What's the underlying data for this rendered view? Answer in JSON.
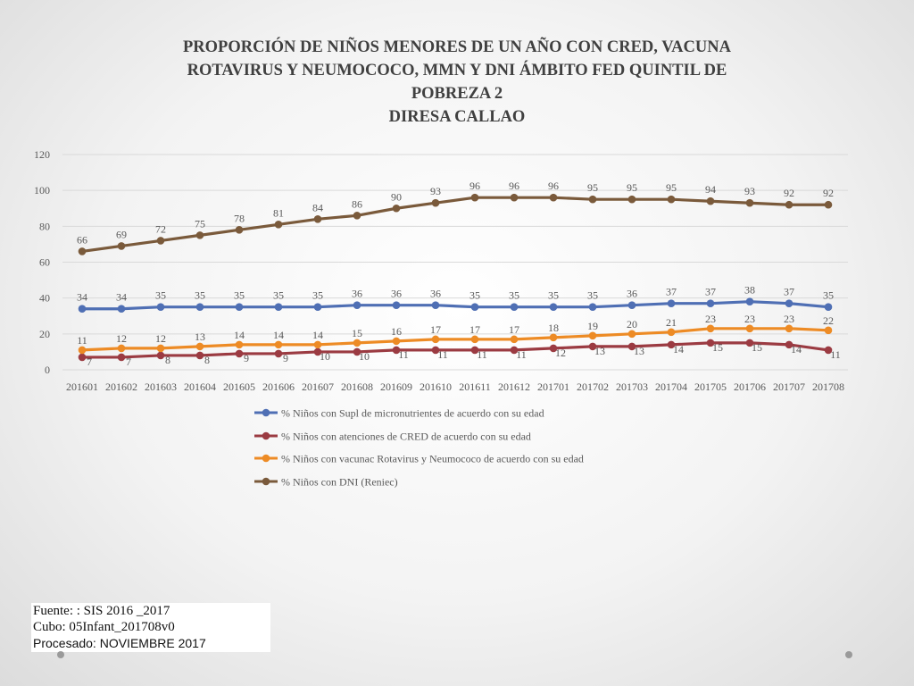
{
  "title": {
    "lines": [
      "PROPORCIÓN DE NIÑOS MENORES DE UN AÑO CON CRED, VACUNA",
      "ROTAVIRUS Y NEUMOCOCO, MMN Y DNI  ÁMBITO FED QUINTIL  DE",
      "POBREZA 2",
      "DIRESA CALLAO"
    ]
  },
  "chart_data": {
    "type": "line",
    "x": [
      "201601",
      "201602",
      "201603",
      "201604",
      "201605",
      "201606",
      "201607",
      "201608",
      "201609",
      "201610",
      "201611",
      "201612",
      "201701",
      "201702",
      "201703",
      "201704",
      "201705",
      "201706",
      "201707",
      "201708"
    ],
    "ylim": [
      0,
      120
    ],
    "yticks": [
      0,
      20,
      40,
      60,
      80,
      100,
      120
    ],
    "grid": true,
    "legend_position": "bottom",
    "series": [
      {
        "name": "% Niños con Supl de micronutrientes de acuerdo con su edad",
        "color": "#4f6fb4",
        "values": [
          34,
          34,
          35,
          35,
          35,
          35,
          35,
          36,
          36,
          36,
          35,
          35,
          35,
          35,
          36,
          37,
          37,
          38,
          37,
          35
        ]
      },
      {
        "name": "% Niños  con atenciones de CRED de acuerdo con su edad",
        "color": "#9b3b42",
        "values": [
          7,
          7,
          8,
          8,
          9,
          9,
          10,
          10,
          11,
          11,
          11,
          11,
          12,
          13,
          13,
          14,
          15,
          15,
          14,
          11
        ]
      },
      {
        "name": "% Niños con vacunac Rotavirus y Neumococo de acuerdo con su edad",
        "color": "#ed8b25",
        "values": [
          11,
          12,
          12,
          13,
          14,
          14,
          14,
          15,
          16,
          17,
          17,
          17,
          18,
          19,
          20,
          21,
          23,
          23,
          23,
          22
        ]
      },
      {
        "name": "% Niños con DNI (Reniec)",
        "color": "#7a5a3b",
        "values": [
          66,
          69,
          72,
          75,
          78,
          81,
          84,
          86,
          90,
          93,
          96,
          96,
          96,
          95,
          95,
          95,
          94,
          93,
          92,
          92
        ]
      }
    ]
  },
  "source": {
    "line1": "Fuente: : SIS 2016 _2017",
    "line2": "Cubo:  05Infant_201708v0",
    "line3": "Procesado: NOVIEMBRE 2017"
  }
}
